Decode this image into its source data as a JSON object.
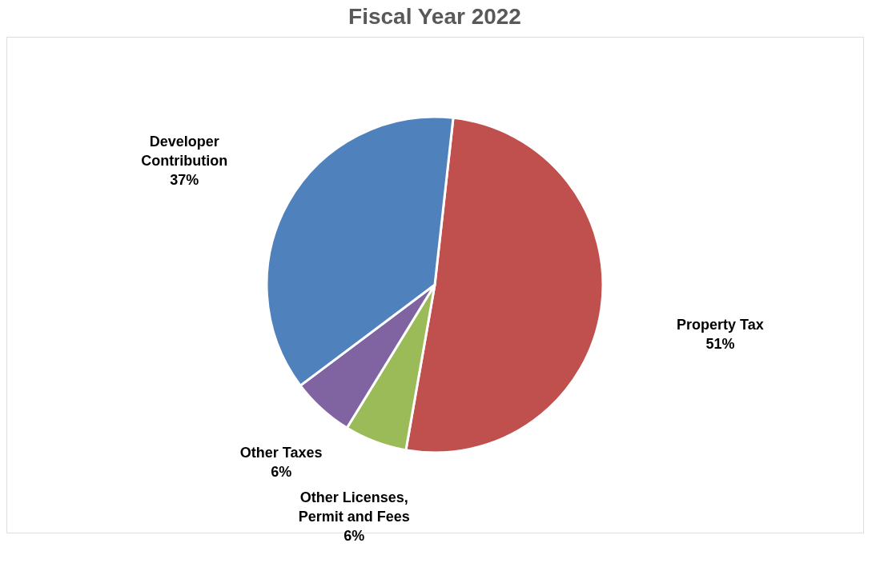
{
  "chart_data": {
    "type": "pie",
    "title": "Fiscal Year 2022",
    "categories": [
      "Property Tax",
      "Other Licenses, Permit and Fees",
      "Other Taxes",
      "Developer Contribution"
    ],
    "values": [
      51,
      6,
      6,
      37
    ],
    "colors": [
      "#c0504d",
      "#9bbb59",
      "#8064a2",
      "#4f81bd"
    ],
    "value_labels": [
      "51%",
      "6%",
      "6%",
      "37%"
    ],
    "legend": false
  }
}
